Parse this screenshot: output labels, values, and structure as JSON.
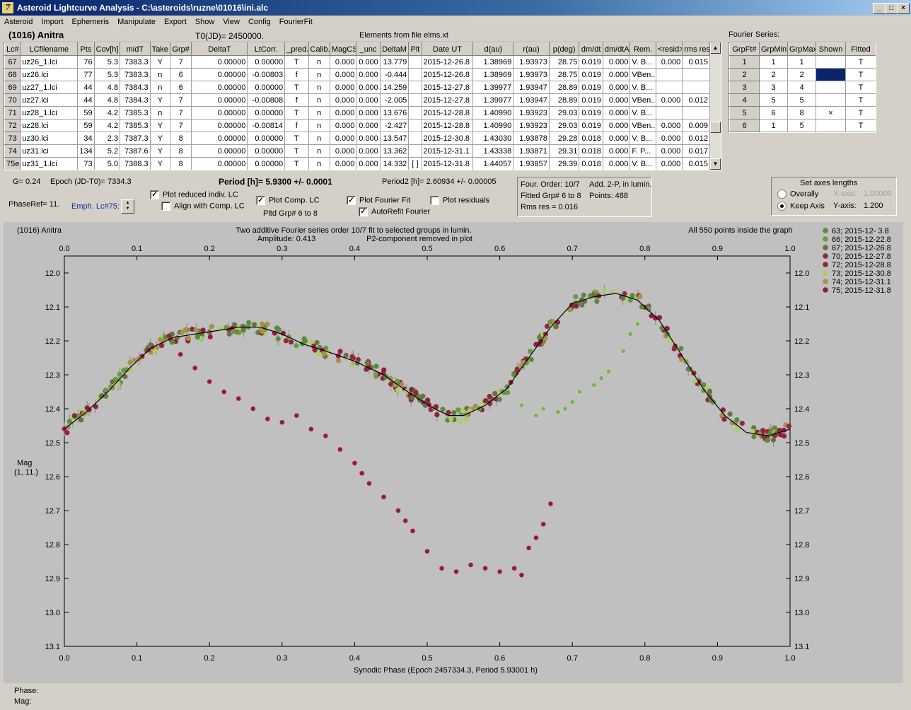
{
  "window": {
    "title": "Asteroid Lightcurve Analysis - C:\\asteroids\\ruzne\\01016\\ini.alc",
    "icon_glyph": "7",
    "min_glyph": "_",
    "max_glyph": "□",
    "close_glyph": "×"
  },
  "menu": [
    "Asteroid",
    "Import",
    "Ephemeris",
    "Manipulate",
    "Export",
    "Show",
    "View",
    "Config",
    "FourierFit"
  ],
  "header": {
    "object": "(1016) Anitra",
    "t0": "T0(JD)= 2450000.",
    "elements": "Elements from file elms.xt",
    "fourier_series": "Fourier Series:"
  },
  "lc_table": {
    "columns": [
      "Lc#",
      "LCfilename",
      "Pts",
      "Cov[h]",
      "midT",
      "Take",
      "Grp#",
      "DeltaT",
      "LtCorr.",
      "_pred.",
      "Calib.",
      "MagCS",
      "_unc",
      "DeltaM",
      "Plt",
      "Date UT",
      "d(au)",
      "r(au)",
      "p(deg)",
      "dm/dt",
      "dm/dtA",
      "Rem.",
      "<resid>",
      "rms res"
    ],
    "rows": [
      [
        "67",
        "uz26_1.lci",
        "76",
        "5.3",
        "7383.3",
        "Y",
        "7",
        "0.00000",
        "0.00000",
        "T",
        "n",
        "0.000",
        "0.000",
        "13.779",
        "",
        "2015-12-26.8",
        "1.38969",
        "1.93973",
        "28.75",
        "0.019",
        "0.000",
        "V. B...",
        "0.000",
        "0.015"
      ],
      [
        "68",
        "uz26.lci",
        "77",
        "5.3",
        "7383.3",
        "n",
        "6",
        "0.00000",
        "-0.00803",
        "f",
        "n",
        "0.000",
        "0.000",
        "-0.444",
        "",
        "2015-12-26.8",
        "1.38969",
        "1.93973",
        "28.75",
        "0.019",
        "0.000",
        "VBen...",
        "",
        ""
      ],
      [
        "69",
        "uz27_1.lci",
        "44",
        "4.8",
        "7384.3",
        "n",
        "6",
        "0.00000",
        "0.00000",
        "T",
        "n",
        "0.000",
        "0.000",
        "14.259",
        "",
        "2015-12-27.8",
        "1.39977",
        "1.93947",
        "28.89",
        "0.019",
        "0.000",
        "V. B...",
        "",
        ""
      ],
      [
        "70",
        "uz27.lci",
        "44",
        "4.8",
        "7384.3",
        "Y",
        "7",
        "0.00000",
        "-0.00808",
        "f",
        "n",
        "0.000",
        "0.000",
        "-2.005",
        "",
        "2015-12-27.8",
        "1.39977",
        "1.93947",
        "28.89",
        "0.019",
        "0.000",
        "VBen...",
        "0.000",
        "0.012"
      ],
      [
        "71",
        "uz28_1.lci",
        "59",
        "4.2",
        "7385.3",
        "n",
        "7",
        "0.00000",
        "0.00000",
        "T",
        "n",
        "0.000",
        "0.000",
        "13.676",
        "",
        "2015-12-28.8",
        "1.40990",
        "1.93923",
        "29.03",
        "0.019",
        "0.000",
        "V. B...",
        "",
        ""
      ],
      [
        "72",
        "uz28.lci",
        "59",
        "4.2",
        "7385.3",
        "Y",
        "7",
        "0.00000",
        "-0.00814",
        "f",
        "n",
        "0.000",
        "0.000",
        "-2.427",
        "",
        "2015-12-28.8",
        "1.40990",
        "1.93923",
        "29.03",
        "0.019",
        "0.000",
        "VBen...",
        "0.000",
        "0.009"
      ],
      [
        "73",
        "uz30.lci",
        "34",
        "2.3",
        "7387.3",
        "Y",
        "8",
        "0.00000",
        "0.00000",
        "T",
        "n",
        "0.000",
        "0.000",
        "13.547",
        "",
        "2015-12-30.8",
        "1.43030",
        "1.93878",
        "29.28",
        "0.018",
        "0.000",
        "V. B...",
        "0.000",
        "0.012"
      ],
      [
        "74",
        "uz31.lci",
        "134",
        "5.2",
        "7387.6",
        "Y",
        "8",
        "0.00000",
        "0.00000",
        "T",
        "n",
        "0.000",
        "0.000",
        "13.362",
        "",
        "2015-12-31.1",
        "1.43338",
        "1.93871",
        "29.31",
        "0.018",
        "0.000",
        "F. P...",
        "0.000",
        "0.017"
      ],
      [
        "75e",
        "uz31_1.lci",
        "73",
        "5.0",
        "7388.3",
        "Y",
        "8",
        "0.00000",
        "0.00000",
        "T",
        "n",
        "0.000",
        "0.000",
        "14.332",
        "[ ]",
        "2015-12-31.8",
        "1.44057",
        "1.93857",
        "29.39",
        "0.018",
        "0.000",
        "V. B...",
        "0.000",
        "0.015"
      ]
    ]
  },
  "fourier_table": {
    "columns": [
      "GrpFt#",
      "GrpMin",
      "GrpMax",
      "Shown",
      "Fitted"
    ],
    "rows": [
      [
        "1",
        "1",
        "1",
        "",
        "T"
      ],
      [
        "2",
        "2",
        "2",
        "",
        "T"
      ],
      [
        "3",
        "3",
        "4",
        "",
        "T"
      ],
      [
        "4",
        "5",
        "5",
        "",
        "T"
      ],
      [
        "5",
        "6",
        "8",
        "×",
        "T"
      ],
      [
        "6",
        "1",
        "5",
        "",
        "T"
      ]
    ]
  },
  "controls": {
    "g_value": "G= 0.24",
    "epoch": "Epoch (JD-T0)= 7334.3",
    "period": "Period [h]= 5.9300 +/- 0.0001",
    "period2": "Period2 [h]= 2.60934 +/- 0.00005",
    "phaseref": "PhaseRef= 11.",
    "emph": "Emph. Lc#75:",
    "plot_reduced": "Plot reduced indiv. LC",
    "align": "Align with Comp. LC",
    "plot_comp": "Plot Comp. LC",
    "pltd_grp": "Pltd Grp#  6  to   8",
    "plot_fourier": "Plot Fourier Fit",
    "autorefit": "AutoRefit Fourier",
    "plot_resid": "Plot residuals",
    "check_glyph": "✓",
    "info": {
      "four_order": "Four. Order: 10/7",
      "add": "Add. 2-P, in lumin.",
      "fitted": "Fitted Grp# 6 to 8",
      "points": "Points: 488",
      "rms": "Rms res     = 0.016"
    },
    "axes": {
      "title": "Set axes lengths",
      "overally": "Overally",
      "keep": "Keep Axis",
      "xaxis_label": "X-axis:",
      "xaxis_value": "1.00000",
      "yaxis_label": "Y-axis:",
      "yaxis_value": "1.200"
    }
  },
  "plot": {
    "object": "(1016) Anitra",
    "title1": "Two additive Fourier series order 10/7 fit to selected groups in lumin.",
    "amplitude": "Amplitude: 0.413",
    "p2": "P2-component removed in plot",
    "inside": "All 550 points inside the graph",
    "ylabel1": "Mag",
    "ylabel2": "(1, 11.)",
    "xlabel": "Synodic Phase (Epoch 2457334.3, Period 5.93001 h)",
    "status_phase": "Phase:",
    "status_mag": "Mag:"
  },
  "chart_data": {
    "type": "scatter",
    "title": "Two additive Fourier series order 10/7 fit to selected groups in lumin.",
    "xlabel": "Synodic Phase (Epoch 2457334.3, Period 5.93001 h)",
    "ylabel": "Mag",
    "xlim": [
      0.0,
      1.0
    ],
    "ylim": [
      12.0,
      13.1
    ],
    "y_inverted": true,
    "x_ticks": [
      "0.0",
      "0.1",
      "0.2",
      "0.3",
      "0.4",
      "0.5",
      "0.6",
      "0.7",
      "0.8",
      "0.9",
      "1.0"
    ],
    "y_ticks": [
      "12.0",
      "12.1",
      "12.2",
      "12.3",
      "12.4",
      "12.5",
      "12.6",
      "12.7",
      "12.8",
      "12.9",
      "13.0",
      "13.1"
    ],
    "legend_position": "top-right, outside plot",
    "fourier_fit": {
      "color": "#000000",
      "x": [
        0.0,
        0.03,
        0.06,
        0.09,
        0.12,
        0.15,
        0.18,
        0.21,
        0.24,
        0.27,
        0.3,
        0.33,
        0.36,
        0.4,
        0.44,
        0.48,
        0.51,
        0.53,
        0.55,
        0.58,
        0.61,
        0.64,
        0.67,
        0.7,
        0.73,
        0.76,
        0.79,
        0.82,
        0.85,
        0.88,
        0.91,
        0.94,
        0.97,
        1.0
      ],
      "y": [
        12.46,
        12.41,
        12.35,
        12.28,
        12.22,
        12.19,
        12.18,
        12.17,
        12.16,
        12.16,
        12.18,
        12.21,
        12.23,
        12.26,
        12.3,
        12.36,
        12.4,
        12.42,
        12.42,
        12.39,
        12.34,
        12.25,
        12.16,
        12.09,
        12.07,
        12.06,
        12.08,
        12.14,
        12.24,
        12.34,
        12.42,
        12.47,
        12.48,
        12.46
      ]
    },
    "series": [
      {
        "name": "63; 2015-12- 3.8",
        "color": "#5a8a3a"
      },
      {
        "name": "66; 2015-12-22.8",
        "color": "#6a9a40"
      },
      {
        "name": "67; 2015-12-26.8",
        "color": "#6a7040"
      },
      {
        "name": "70; 2015-12-27.8",
        "color": "#8a2a3a"
      },
      {
        "name": "72; 2015-12-28.8",
        "color": "#9a2040"
      },
      {
        "name": "73; 2015-12-30.8",
        "color": "#a8d060"
      },
      {
        "name": "74; 2015-12-31.1",
        "color": "#a8904a"
      },
      {
        "name": "75; 2015-12-31.8",
        "color": "#8a2040"
      }
    ],
    "emph_series": {
      "name": "75e (emphasized)",
      "color": "#8a2040",
      "x": [
        0.16,
        0.18,
        0.2,
        0.22,
        0.24,
        0.26,
        0.28,
        0.3,
        0.32,
        0.34,
        0.36,
        0.38,
        0.4,
        0.41,
        0.42,
        0.44,
        0.46,
        0.47,
        0.48,
        0.5,
        0.52,
        0.54,
        0.56,
        0.58,
        0.6,
        0.62,
        0.63,
        0.64,
        0.65,
        0.66,
        0.67
      ],
      "y": [
        12.24,
        12.28,
        12.32,
        12.35,
        12.37,
        12.4,
        12.43,
        12.44,
        12.42,
        12.46,
        12.48,
        12.52,
        12.56,
        12.59,
        12.62,
        12.66,
        12.7,
        12.73,
        12.76,
        12.82,
        12.87,
        12.88,
        12.86,
        12.87,
        12.88,
        12.87,
        12.89,
        12.81,
        12.78,
        12.74,
        12.68
      ]
    },
    "shifted_series": {
      "name": "73 (offset)",
      "color": "#7ab060",
      "x": [
        0.63,
        0.65,
        0.66,
        0.68,
        0.69,
        0.7,
        0.71,
        0.73,
        0.74,
        0.75,
        0.77,
        0.78,
        0.79
      ],
      "y": [
        12.39,
        12.42,
        12.4,
        12.41,
        12.4,
        12.38,
        12.35,
        12.33,
        12.31,
        12.29,
        12.23,
        12.18,
        12.15
      ]
    }
  }
}
